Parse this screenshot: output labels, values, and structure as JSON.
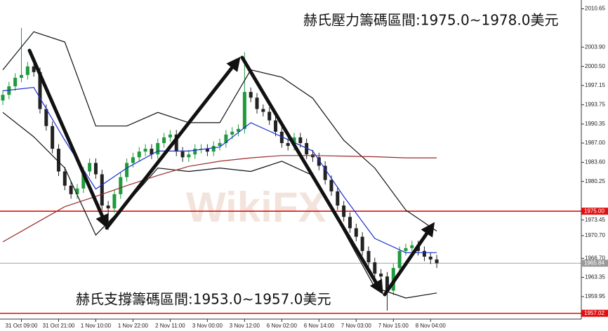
{
  "chart_data": {
    "type": "candlestick",
    "categories": [
      null,
      null,
      null,
      "31 Oct 09:00",
      null,
      null,
      null,
      null,
      null,
      "31 Oct 21:00",
      null,
      null,
      null,
      null,
      null,
      "1 Nov 10:00",
      null,
      null,
      null,
      null,
      null,
      "1 Nov 22:00",
      null,
      null,
      null,
      null,
      null,
      "2 Nov 11:00",
      null,
      null,
      null,
      null,
      null,
      "3 Nov 00:00",
      null,
      null,
      null,
      null,
      null,
      "3 Nov 12:00",
      null,
      null,
      null,
      null,
      null,
      "6 Nov 02:00",
      null,
      null,
      null,
      null,
      null,
      "6 Nov 14:00",
      null,
      null,
      null,
      null,
      null,
      "7 Nov 03:00",
      null,
      null,
      null,
      null,
      null,
      "7 Nov 15:00",
      null,
      null,
      null,
      null,
      null,
      "8 Nov 04:00",
      null
    ],
    "open": [
      1994.5,
      1995.5,
      1997,
      1998.5,
      1999,
      2000.5,
      1999.5,
      1993,
      1990,
      1986,
      1982,
      1979.5,
      1978,
      1979,
      1982,
      1983.5,
      1981.5,
      1976,
      1975.5,
      1978,
      1981,
      1983.5,
      1984.5,
      1985.5,
      1986,
      1985,
      1987,
      1988,
      1988.5,
      1985.5,
      1984.5,
      1985,
      1986,
      1986,
      1985.5,
      1986.5,
      1987,
      1988.5,
      1989,
      1989.5,
      1996,
      1995,
      1993,
      1992.5,
      1991,
      1989,
      1987,
      1986.5,
      1988,
      1987,
      1985,
      1984.5,
      1983,
      1980.5,
      1978.5,
      1976,
      1974,
      1972,
      1970.5,
      1968,
      1966,
      1964,
      1963.5,
      1961,
      1965,
      1968,
      1968.5,
      1969,
      1968,
      1967,
      1966.5
    ],
    "high": [
      1996.3,
      1997.8,
      1999.3,
      2007.3,
      2001.3,
      2001.3,
      2000.3,
      1993.8,
      1990.8,
      1986.8,
      1982.8,
      1980.3,
      1979.8,
      1982.8,
      1984.3,
      1984.3,
      1982.3,
      1976.8,
      1978.8,
      1981.8,
      1984.3,
      1985.3,
      1986.3,
      1986.8,
      1986.8,
      1987.8,
      1988.8,
      1989.3,
      1989.3,
      1986.3,
      1985.8,
      1986.8,
      1986.8,
      1986.8,
      1987.3,
      1987.8,
      1989.3,
      1989.8,
      1990.3,
      2003,
      1996.8,
      1995.8,
      1993.8,
      1993.3,
      1991.8,
      1989.8,
      1987.8,
      1988.8,
      1988.8,
      1987.8,
      1985.8,
      1985.3,
      1983.8,
      1981.3,
      1979.3,
      1976.8,
      1974.8,
      1972.8,
      1971.3,
      1968.8,
      1966.8,
      1964.8,
      1964.3,
      1965.8,
      1968.8,
      1969.3,
      1969.8,
      1969.8,
      1968.8,
      1967.8,
      1967.3
    ],
    "low": [
      1993.7,
      1994.7,
      1996.2,
      1997.7,
      1998.2,
      1998.7,
      1992.2,
      1989.2,
      1985.2,
      1981.2,
      1978.7,
      1977.2,
      1977.2,
      1978.2,
      1981.2,
      1980.7,
      1975.2,
      1971.7,
      1974.7,
      1977.2,
      1980.2,
      1982.7,
      1983.7,
      1984.7,
      1984.2,
      1984.2,
      1986.2,
      1987.2,
      1984.7,
      1983.7,
      1983.7,
      1984.2,
      1985.2,
      1984.7,
      1984.7,
      1985.7,
      1986.2,
      1987.7,
      1988.2,
      1988.7,
      1994.2,
      1992.2,
      1991.7,
      1990.2,
      1988.2,
      1986.2,
      1985.7,
      1985.7,
      1986.2,
      1984.2,
      1983.7,
      1982.2,
      1979.7,
      1977.7,
      1975.2,
      1973.2,
      1971.2,
      1969.7,
      1967.2,
      1965.2,
      1963.2,
      1962.7,
      1957.5,
      1960.2,
      1964.2,
      1967.2,
      1967.7,
      1967.2,
      1966.2,
      1965.7,
      1965.0
    ],
    "close": [
      1995.5,
      1997,
      1998.5,
      1999,
      2000.5,
      1999.5,
      1993,
      1990,
      1986,
      1982,
      1979.5,
      1978,
      1979,
      1982,
      1983.5,
      1981.5,
      1976,
      1975.5,
      1978,
      1981,
      1983.5,
      1984.5,
      1985.5,
      1986,
      1985,
      1987,
      1988,
      1988.5,
      1985.5,
      1984.5,
      1985,
      1986,
      1986,
      1985.5,
      1986.5,
      1987,
      1988.5,
      1989,
      1989.5,
      1996,
      1995,
      1993,
      1992.5,
      1991,
      1989,
      1987,
      1986.5,
      1988,
      1987,
      1985,
      1984.5,
      1983,
      1980.5,
      1978.5,
      1976,
      1974,
      1972,
      1970.5,
      1968,
      1966,
      1964,
      1963.5,
      1961,
      1965,
      1968,
      1968.5,
      1969,
      1968,
      1967,
      1966.5,
      1965.84
    ],
    "up_color": "#1f9a3c",
    "down_color": "#222222",
    "overlays": [
      {
        "color": "#111111",
        "x": [
          0,
          5,
          10,
          15,
          20,
          25,
          30,
          35,
          40,
          45,
          50,
          55,
          60,
          65,
          70
        ],
        "values": [
          1999.9,
          2006.6,
          2004.8,
          1990,
          1990,
          1992.4,
          1990.6,
          1990.6,
          1999.9,
          1998.6,
          1994.9,
          1987.5,
          1982.6,
          1975.2,
          1971.5
        ]
      },
      {
        "color": "#111111",
        "x": [
          0,
          5,
          10,
          15,
          20,
          25,
          30,
          35,
          40,
          45,
          50,
          55,
          60,
          65,
          70
        ],
        "values": [
          1992.4,
          1988.1,
          1982.6,
          1970.8,
          1976.4,
          1982.6,
          1982,
          1982.6,
          1982,
          1983.8,
          1981.3,
          1971.5,
          1961.6,
          1959.7,
          1960.6
        ]
      },
      {
        "color": "#1a2fd0",
        "x": [
          0,
          5,
          10,
          15,
          20,
          25,
          30,
          35,
          40,
          45,
          50,
          55,
          60,
          65,
          70
        ],
        "values": [
          1996.2,
          1996.8,
          1987.5,
          1978.9,
          1982.6,
          1985.6,
          1985.6,
          1986.3,
          1990.6,
          1988.1,
          1985.6,
          1977.6,
          1970.2,
          1967.7,
          1967.7
        ]
      },
      {
        "color": "#9b2a2a",
        "x": [
          0,
          5,
          10,
          15,
          20,
          25,
          30,
          35,
          40,
          45,
          50,
          55,
          60,
          65,
          70
        ],
        "values": [
          1969.6,
          1972.7,
          1975.8,
          1977.6,
          1979.5,
          1981.3,
          1982.9,
          1983.8,
          1984.4,
          1984.8,
          1984.8,
          1984.7,
          1984.6,
          1984.4,
          1984.4
        ]
      }
    ],
    "ylim": [
      1956.0,
      2012.2
    ],
    "yticks": [
      {
        "value": 2010.65,
        "label": "2010.65"
      },
      {
        "value": 2003.9,
        "label": "2003.90"
      },
      {
        "value": 2000.5,
        "label": "2000.50"
      },
      {
        "value": 1997.15,
        "label": "1997.15"
      },
      {
        "value": 1993.75,
        "label": "1993.75"
      },
      {
        "value": 1990.35,
        "label": "1990.35"
      },
      {
        "value": 1987,
        "label": "1987.00"
      },
      {
        "value": 1983.6,
        "label": "1983.60"
      },
      {
        "value": 1980.25,
        "label": "1980.25"
      },
      {
        "value": 1973.45,
        "label": "1973.45"
      },
      {
        "value": 1970.7,
        "label": "1970.70"
      },
      {
        "value": 1966.7,
        "label": "1966.70"
      },
      {
        "value": 1963.35,
        "label": "1963.35"
      },
      {
        "value": 1959.95,
        "label": "1959.95"
      }
    ],
    "price_lines": [
      {
        "value": 1975,
        "label": "1975.00",
        "color": "#e01010"
      },
      {
        "value": 1957.02,
        "label": "1957.02",
        "color": "#e01010"
      },
      {
        "value": 1965.84,
        "label": "1965.84",
        "color": "#9a9a9a"
      }
    ],
    "annotations": [
      "赫氏壓力籌碼區間:1975.0~1978.0美元",
      "赫氏支撐籌碼區間:1953.0~1957.0美元"
    ],
    "watermark": "WikiFX"
  }
}
